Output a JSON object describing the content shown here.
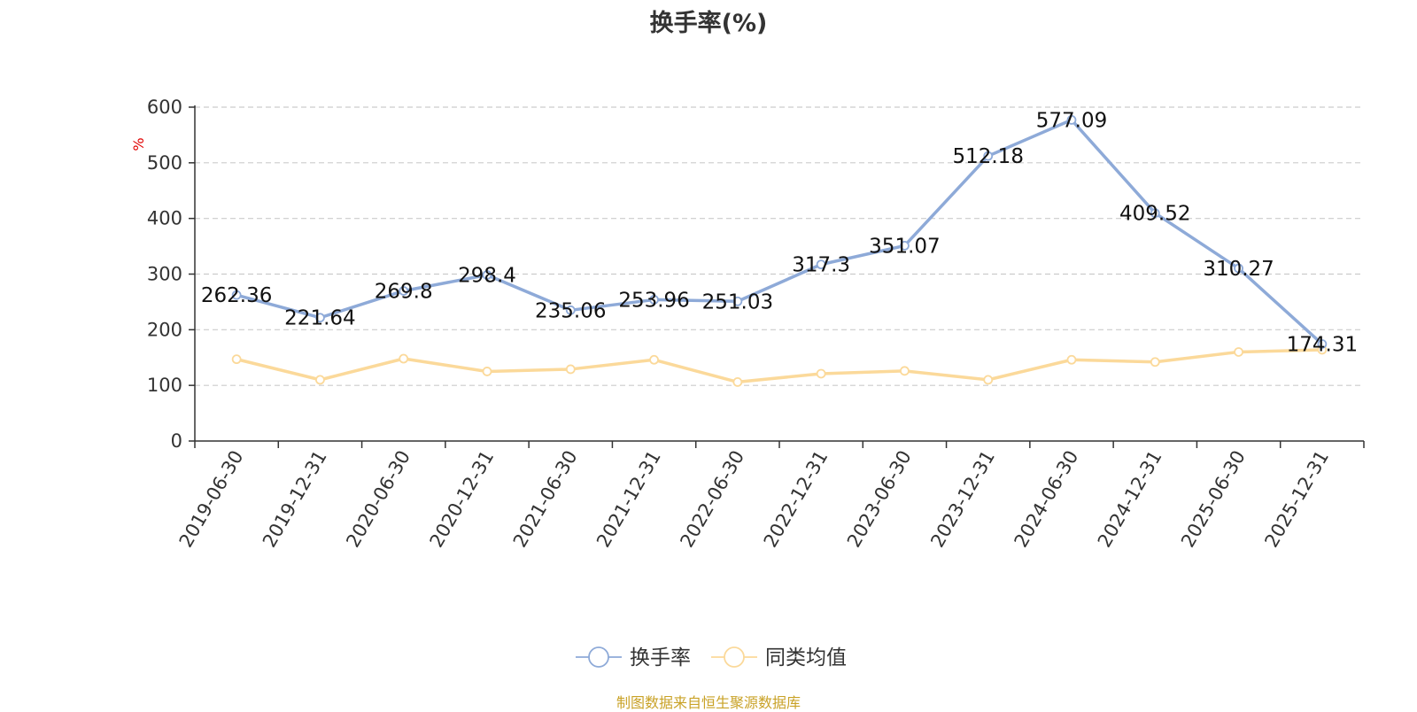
{
  "chart_data": {
    "type": "line",
    "title": "换手率(%)",
    "ylabel": "%",
    "xlabel": "",
    "ylim": [
      0,
      600
    ],
    "yticks": [
      0,
      100,
      200,
      300,
      400,
      500,
      600
    ],
    "grid": true,
    "legend_position": "bottom",
    "categories": [
      "2019-06-30",
      "2019-12-31",
      "2020-06-30",
      "2020-12-31",
      "2021-06-30",
      "2021-12-31",
      "2022-06-30",
      "2022-12-31",
      "2023-06-30",
      "2023-12-31",
      "2024-06-30",
      "2024-12-31",
      "2025-06-30",
      "2025-12-31"
    ],
    "series": [
      {
        "name": "换手率",
        "color": "#8eaad8",
        "show_labels": true,
        "values": [
          262.36,
          221.64,
          269.8,
          298.4,
          235.06,
          253.96,
          251.03,
          317.3,
          351.07,
          512.18,
          577.09,
          409.52,
          310.27,
          174.31
        ]
      },
      {
        "name": "同类均值",
        "color": "#fbd99a",
        "show_labels": false,
        "values": [
          147,
          110,
          148,
          125,
          129,
          146,
          106,
          121,
          126,
          110,
          146,
          142,
          160,
          164
        ]
      }
    ],
    "source": "制图数据来自恒生聚源数据库"
  }
}
